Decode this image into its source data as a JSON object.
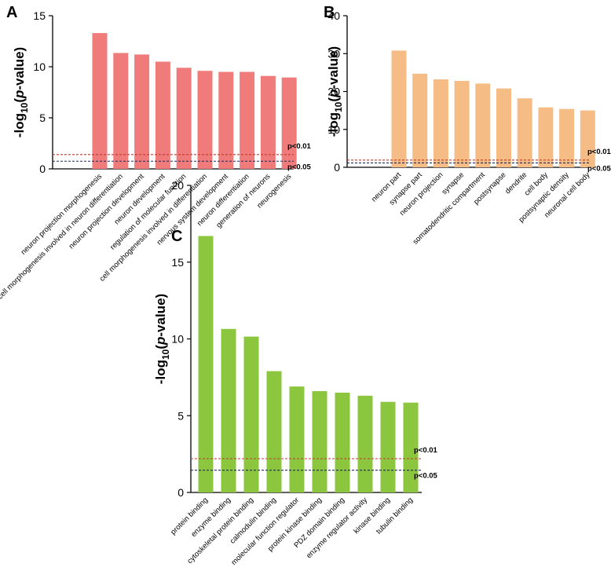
{
  "chart_data": [
    {
      "panel": "A",
      "type": "bar",
      "color": "#ef7b7b",
      "ylabel": "-log10(p-value)",
      "ylim": [
        0,
        15
      ],
      "yticks": [
        0,
        5,
        10,
        15
      ],
      "categories": [
        "neuron projection morphogenesis",
        "cell morphogenesis involved in neuron differentiation",
        "neuron projection development",
        "neuron development",
        "regulation of molecular function",
        "cell morphogenesis involved in differentiation",
        "nervous system development",
        "neuron differentiation",
        "generation of neurons",
        "neurogenesis"
      ],
      "values": [
        13.3,
        11.35,
        11.2,
        10.5,
        9.9,
        9.6,
        9.5,
        9.5,
        9.1,
        8.95
      ],
      "thresholds": [
        {
          "label": "p<0.01",
          "value": 1.4,
          "color": "#c0392b"
        },
        {
          "label": "p<0.05",
          "value": 0.75,
          "color": "#1a2a5e"
        }
      ]
    },
    {
      "panel": "B",
      "type": "bar",
      "color": "#f5bd85",
      "ylabel": "-log10(p-value)",
      "ylim": [
        0,
        40
      ],
      "yticks": [
        0,
        10,
        20,
        30,
        40
      ],
      "categories": [
        "neuron part",
        "synapse part",
        "neuron projection",
        "synapse",
        "somatodendritic compartment",
        "postsynapse",
        "dendrite",
        "cell body",
        "postsynaptic density",
        "neuronal cell body"
      ],
      "values": [
        30.8,
        24.7,
        23.2,
        22.8,
        22.1,
        20.8,
        18.2,
        15.8,
        15.4,
        15.0
      ],
      "thresholds": [
        {
          "label": "p<0.01",
          "value": 1.9,
          "color": "#c0392b"
        },
        {
          "label": "p<0.05",
          "value": 1.15,
          "color": "#1a2a5e"
        }
      ]
    },
    {
      "panel": "C",
      "type": "bar",
      "color": "#8cc63f",
      "ylabel": "-log10(p-value)",
      "ylim": [
        0,
        20
      ],
      "yticks": [
        0,
        5,
        10,
        15,
        20
      ],
      "categories": [
        "protein binding",
        "enzyme binding",
        "cytoskeletal protein binding",
        "calmodulin binding",
        "molecular function regulator",
        "protein kinase binding",
        "PDZ domain binding",
        "enzyme regulator activity",
        "kinase binding",
        "tubulin binding"
      ],
      "values": [
        16.7,
        10.65,
        10.15,
        7.9,
        6.9,
        6.6,
        6.5,
        6.3,
        5.9,
        5.85
      ],
      "thresholds": [
        {
          "label": "p<0.01",
          "value": 2.2,
          "color": "#c0392b"
        },
        {
          "label": "p<0.05",
          "value": 1.45,
          "color": "#1a2a5e"
        }
      ]
    }
  ],
  "ylabel_parts": {
    "pre": "-log",
    "sub": "10",
    "open": "(",
    "ital": "p",
    "post": "-value)"
  }
}
